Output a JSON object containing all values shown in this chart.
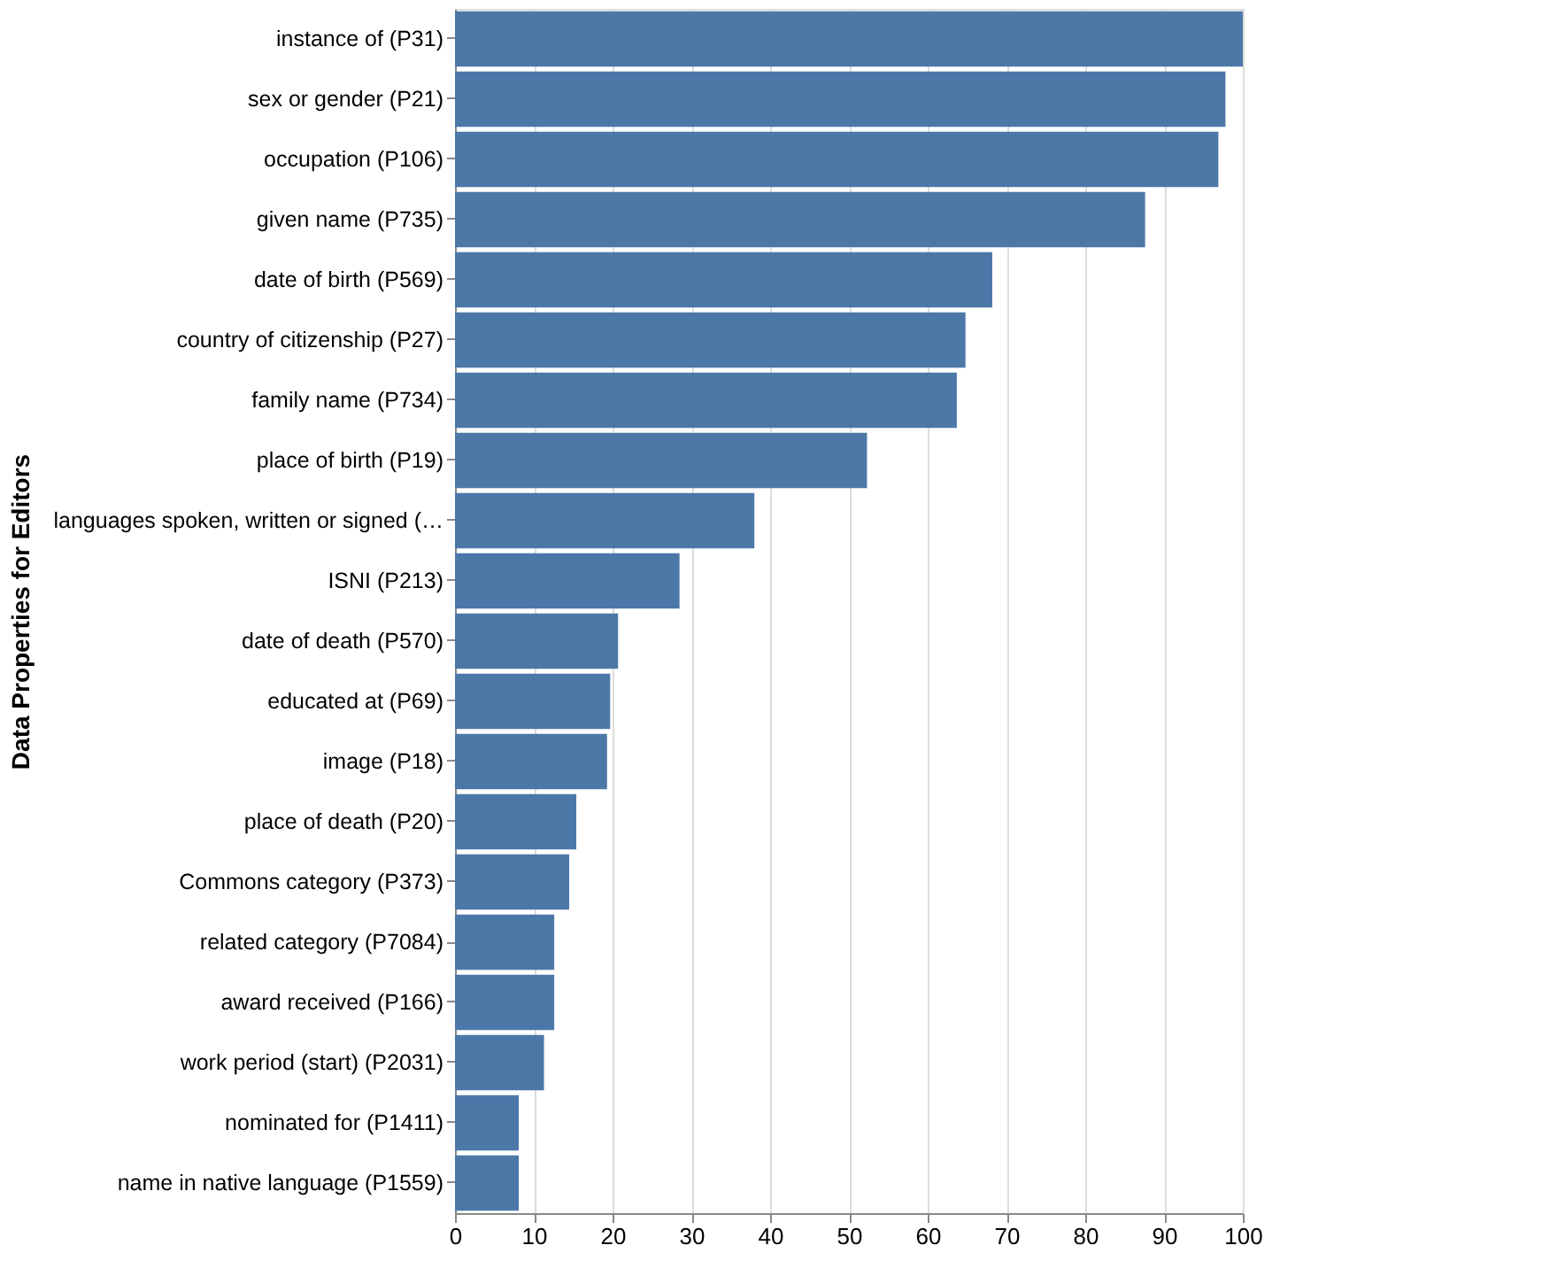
{
  "chart_data": {
    "type": "bar",
    "orientation": "horizontal",
    "ylabel": "Data Properties for Editors",
    "categories": [
      "instance of (P31)",
      "sex or gender (P21)",
      "occupation (P106)",
      "given name (P735)",
      "date of birth (P569)",
      "country of citizenship (P27)",
      "family name (P734)",
      "place of birth (P19)",
      "languages spoken, written or signed (…",
      "ISNI (P213)",
      "date of death (P570)",
      "educated at (P69)",
      "image (P18)",
      "place of death (P20)",
      "Commons category (P373)",
      "related category (P7084)",
      "award received (P166)",
      "work period (start) (P2031)",
      "nominated for (P1411)",
      "name in native language (P1559)"
    ],
    "values": [
      100,
      97.8,
      96.9,
      87.6,
      68.2,
      64.8,
      63.7,
      52.3,
      38.0,
      28.5,
      20.7,
      19.7,
      19.3,
      15.4,
      14.5,
      12.6,
      12.6,
      11.3,
      8.1,
      8.1
    ],
    "color": "#4c78a8",
    "xlim": [
      0,
      100
    ],
    "xticks": [
      0,
      10,
      20,
      30,
      40,
      50,
      60,
      70,
      80,
      90,
      100
    ],
    "grid": "x"
  }
}
